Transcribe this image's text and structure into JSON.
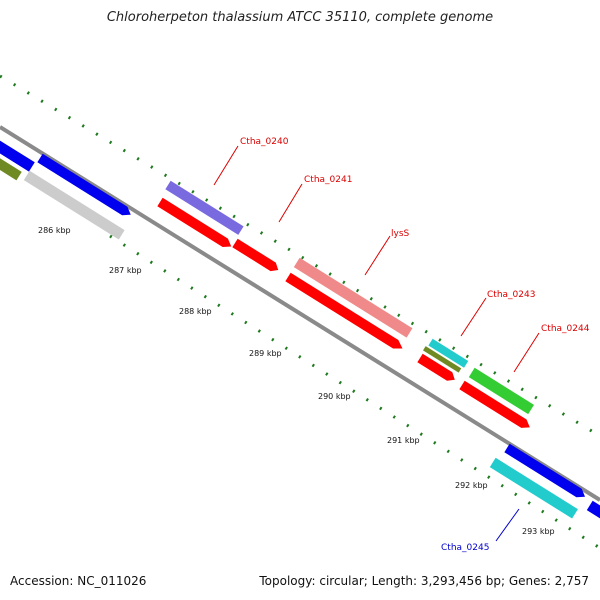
{
  "title": "Chloroherpeton thalassium ATCC 35110, complete genome",
  "footer": {
    "accession": "Accession: NC_011026",
    "stats": "Topology: circular; Length: 3,293,456 bp; Genes: 2,757"
  },
  "map": {
    "tick_labels": [
      "286 kbp",
      "287 kbp",
      "288 kbp",
      "289 kbp",
      "290 kbp",
      "291 kbp",
      "292 kbp",
      "293 kbp"
    ],
    "gene_labels": [
      {
        "text": "Ctha_0240",
        "color": "#dd0000"
      },
      {
        "text": "Ctha_0241",
        "color": "#dd0000"
      },
      {
        "text": "lysS",
        "color": "#dd0000"
      },
      {
        "text": "Ctha_0243",
        "color": "#dd0000"
      },
      {
        "text": "Ctha_0244",
        "color": "#dd0000"
      },
      {
        "text": "Ctha_0245",
        "color": "#0000cc"
      }
    ],
    "colors": {
      "backbone": "#8a8a8a",
      "tick": "#1e7a1e",
      "red_gene": "#ff0000",
      "blue_gene": "#0000ee",
      "lysS_gene": "#f08a8a",
      "purple_gene": "#7a6ae0",
      "green_gene": "#33cc33",
      "olive_gene": "#6f8a22",
      "cyan_gene": "#22cccc",
      "gray_gene": "#cccccc"
    }
  }
}
